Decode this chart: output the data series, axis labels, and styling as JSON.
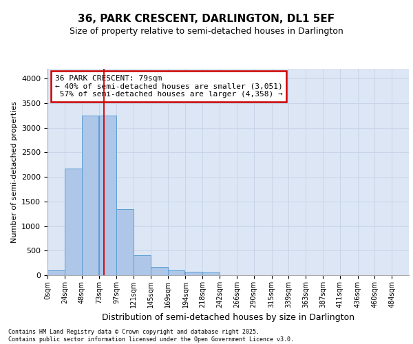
{
  "title_line1": "36, PARK CRESCENT, DARLINGTON, DL1 5EF",
  "title_line2": "Size of property relative to semi-detached houses in Darlington",
  "xlabel": "Distribution of semi-detached houses by size in Darlington",
  "ylabel": "Number of semi-detached properties",
  "footnote1": "Contains HM Land Registry data © Crown copyright and database right 2025.",
  "footnote2": "Contains public sector information licensed under the Open Government Licence v3.0.",
  "property_size": 79,
  "property_label": "36 PARK CRESCENT: 79sqm",
  "pct_smaller": 40,
  "count_smaller": 3051,
  "pct_larger": 57,
  "count_larger": 4358,
  "bin_labels": [
    "0sqm",
    "24sqm",
    "48sqm",
    "73sqm",
    "97sqm",
    "121sqm",
    "145sqm",
    "169sqm",
    "194sqm",
    "218sqm",
    "242sqm",
    "266sqm",
    "290sqm",
    "315sqm",
    "339sqm",
    "363sqm",
    "387sqm",
    "411sqm",
    "436sqm",
    "460sqm",
    "484sqm"
  ],
  "bin_edges": [
    0,
    24,
    48,
    73,
    97,
    121,
    145,
    169,
    194,
    218,
    242,
    266,
    290,
    315,
    339,
    363,
    387,
    411,
    436,
    460,
    484
  ],
  "bar_values": [
    100,
    2175,
    3250,
    3250,
    1350,
    400,
    170,
    100,
    65,
    60,
    0,
    0,
    0,
    0,
    0,
    0,
    0,
    0,
    0,
    0
  ],
  "bar_color": "#aec6e8",
  "bar_edge_color": "#5a9fd4",
  "grid_color": "#c8d4e8",
  "background_color": "#dce6f5",
  "vline_x": 79,
  "vline_color": "#cc0000",
  "annotation_box_color": "#cc0000",
  "ylim": [
    0,
    4200
  ],
  "yticks": [
    0,
    500,
    1000,
    1500,
    2000,
    2500,
    3000,
    3500,
    4000
  ]
}
